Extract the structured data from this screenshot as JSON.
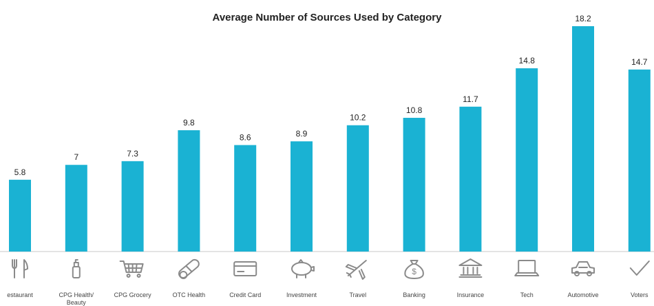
{
  "chart_data": {
    "type": "bar",
    "title": "Average Number of Sources Used by Category",
    "xlabel": "",
    "ylabel": "",
    "ylim": [
      0,
      18.2
    ],
    "grid": false,
    "legend": "none",
    "categories": [
      "estaurant",
      "CPG Health/\nBeauty",
      "CPG Grocery",
      "OTC Health",
      "Credit Card",
      "Investment",
      "Travel",
      "Banking",
      "Insurance",
      "Tech",
      "Automotive",
      "Voters"
    ],
    "values": [
      5.8,
      7,
      7.3,
      9.8,
      8.6,
      8.9,
      10.2,
      10.8,
      11.7,
      14.8,
      18.2,
      14.7
    ],
    "value_labels": [
      "5.8",
      "7",
      "7.3",
      "9.8",
      "8.6",
      "8.9",
      "10.2",
      "10.8",
      "11.7",
      "14.8",
      "18.2",
      "14.7"
    ],
    "icons": [
      "fork-knife-icon",
      "bottle-icon",
      "shopping-cart-icon",
      "pill-icon",
      "credit-card-icon",
      "piggy-bank-icon",
      "airplane-icon",
      "money-bag-icon",
      "bank-icon",
      "laptop-icon",
      "car-icon",
      "checkmark-icon"
    ]
  },
  "colors": {
    "bar": "#1ab2d3",
    "text": "#222222",
    "axis": "#c9c9c9",
    "icon": "#8a8a8a",
    "category_label": "#444444"
  }
}
